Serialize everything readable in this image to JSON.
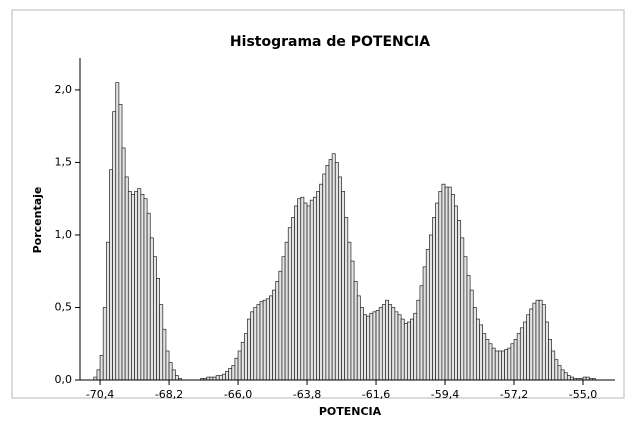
{
  "chart_data": {
    "type": "histogram",
    "title": "Histograma de POTENCIA",
    "x_label": "POTENCIA",
    "y_label": "Porcentaje",
    "color": "#e4e4e4",
    "bins": [
      -70.7,
      -70.6,
      -70.5,
      -70.4,
      -70.3,
      -70.2,
      -70.1,
      -70.0,
      -69.9,
      -69.8,
      -69.7,
      -69.6,
      -69.5,
      -69.4,
      -69.3,
      -69.2,
      -69.1,
      -69.0,
      -68.9,
      -68.8,
      -68.7,
      -68.6,
      -68.5,
      -68.4,
      -68.3,
      -68.2,
      -68.1,
      -68.0,
      -67.9,
      -67.8,
      -67.7,
      -67.6,
      -67.5,
      -67.4,
      -67.3,
      -67.2,
      -67.1,
      -67.0,
      -66.9,
      -66.8,
      -66.7,
      -66.6,
      -66.5,
      -66.4,
      -66.3,
      -66.2,
      -66.1,
      -66.0,
      -65.9,
      -65.8,
      -65.7,
      -65.6,
      -65.5,
      -65.4,
      -65.3,
      -65.2,
      -65.1,
      -65.0,
      -64.9,
      -64.8,
      -64.7,
      -64.6,
      -64.5,
      -64.4,
      -64.3,
      -64.2,
      -64.1,
      -64.0,
      -63.9,
      -63.8,
      -63.7,
      -63.6,
      -63.5,
      -63.4,
      -63.3,
      -63.2,
      -63.1,
      -63.0,
      -62.9,
      -62.8,
      -62.7,
      -62.6,
      -62.5,
      -62.4,
      -62.3,
      -62.2,
      -62.1,
      -62.0,
      -61.9,
      -61.8,
      -61.7,
      -61.6,
      -61.5,
      -61.4,
      -61.3,
      -61.2,
      -61.1,
      -61.0,
      -60.9,
      -60.8,
      -60.7,
      -60.6,
      -60.5,
      -60.4,
      -60.3,
      -60.2,
      -60.1,
      -60.0,
      -59.9,
      -59.8,
      -59.7,
      -59.6,
      -59.5,
      -59.4,
      -59.3,
      -59.2,
      -59.1,
      -59.0,
      -58.9,
      -58.8,
      -58.7,
      -58.6,
      -58.5,
      -58.4,
      -58.3,
      -58.2,
      -58.1,
      -58.0,
      -57.9,
      -57.8,
      -57.7,
      -57.6,
      -57.5,
      -57.4,
      -57.3,
      -57.2,
      -57.1,
      -57.0,
      -56.9,
      -56.8,
      -56.7,
      -56.6,
      -56.5,
      -56.4,
      -56.3,
      -56.2,
      -56.1,
      -56.0,
      -55.9,
      -55.8,
      -55.7,
      -55.6,
      -55.5,
      -55.4,
      -55.3,
      -55.2,
      -55.1,
      -55.0,
      -54.9,
      -54.8,
      -54.7,
      -54.6,
      -54.5
    ],
    "values": [
      0,
      0.02,
      0.07,
      0.17,
      0.5,
      0.95,
      1.45,
      1.85,
      2.05,
      1.9,
      1.6,
      1.4,
      1.3,
      1.28,
      1.3,
      1.32,
      1.28,
      1.25,
      1.15,
      0.98,
      0.85,
      0.7,
      0.52,
      0.35,
      0.2,
      0.12,
      0.07,
      0.03,
      0.01,
      0,
      0,
      0,
      0,
      0,
      0,
      0.01,
      0.01,
      0.02,
      0.02,
      0.02,
      0.03,
      0.03,
      0.04,
      0.06,
      0.08,
      0.1,
      0.15,
      0.2,
      0.26,
      0.32,
      0.42,
      0.47,
      0.5,
      0.52,
      0.54,
      0.55,
      0.56,
      0.58,
      0.62,
      0.68,
      0.75,
      0.85,
      0.95,
      1.05,
      1.12,
      1.2,
      1.25,
      1.26,
      1.22,
      1.2,
      1.24,
      1.26,
      1.3,
      1.35,
      1.42,
      1.48,
      1.52,
      1.56,
      1.5,
      1.4,
      1.3,
      1.12,
      0.95,
      0.82,
      0.68,
      0.58,
      0.5,
      0.45,
      0.44,
      0.46,
      0.47,
      0.48,
      0.5,
      0.52,
      0.55,
      0.52,
      0.5,
      0.47,
      0.45,
      0.42,
      0.39,
      0.4,
      0.42,
      0.46,
      0.55,
      0.65,
      0.78,
      0.9,
      1.0,
      1.12,
      1.22,
      1.3,
      1.35,
      1.33,
      1.33,
      1.28,
      1.2,
      1.1,
      0.98,
      0.85,
      0.72,
      0.62,
      0.5,
      0.42,
      0.38,
      0.32,
      0.28,
      0.25,
      0.22,
      0.2,
      0.2,
      0.2,
      0.21,
      0.22,
      0.25,
      0.28,
      0.32,
      0.36,
      0.4,
      0.45,
      0.49,
      0.53,
      0.55,
      0.55,
      0.52,
      0.4,
      0.28,
      0.2,
      0.14,
      0.1,
      0.07,
      0.05,
      0.03,
      0.02,
      0.01,
      0.01,
      0.01,
      0.02,
      0.02,
      0.01,
      0.01,
      0
    ],
    "xlim": [
      -71.04,
      -53.98
    ],
    "xticks": [
      {
        "value": -70.4,
        "label": "-70,4"
      },
      {
        "value": -68.2,
        "label": "-68,2"
      },
      {
        "value": -66.0,
        "label": "-66,0"
      },
      {
        "value": -63.8,
        "label": "-63,8"
      },
      {
        "value": -61.6,
        "label": "-61,6"
      },
      {
        "value": -59.4,
        "label": "-59,4"
      },
      {
        "value": -57.2,
        "label": "-57,2"
      },
      {
        "value": -55.0,
        "label": "-55,0"
      }
    ],
    "ylim": [
      0,
      2.22
    ],
    "yticks": [
      {
        "value": 0,
        "label": "0,0"
      },
      {
        "value": 0.5,
        "label": "0,5"
      },
      {
        "value": 1.0,
        "label": "1,0"
      },
      {
        "value": 1.5,
        "label": "1,5"
      },
      {
        "value": 2.0,
        "label": "2,0"
      }
    ]
  }
}
